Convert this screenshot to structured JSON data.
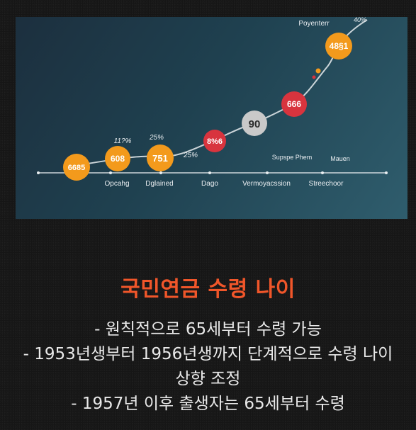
{
  "illustration": {
    "top_labels": [
      "Poyenterr",
      "40%"
    ],
    "milestones": [
      {
        "value": "6685",
        "color": "#f39a1c"
      },
      {
        "value": "608",
        "color": "#f39a1c"
      },
      {
        "value": "751",
        "color": "#f39a1c"
      },
      {
        "value": "8%6",
        "color": "#d8343e"
      },
      {
        "value": "90",
        "color": "#c9c9c9"
      },
      {
        "value": "666",
        "color": "#d8343e"
      },
      {
        "value": "48§1",
        "color": "#f39a1c"
      }
    ],
    "percent_labels": [
      "11?%",
      "25%",
      "25%"
    ],
    "axis_labels": [
      "Opcahg",
      "Dglained",
      "Dago",
      "Vermoyacssion",
      "Streechoor"
    ],
    "upper_labels": [
      "Supspe Phem",
      "Mauen"
    ]
  },
  "content": {
    "title": "국민연금 수령 나이",
    "bullets": [
      "- 원칙적으로 65세부터 수령 가능",
      "- 1953년생부터 1956년생까지 단계적으로 수령 나이 상향 조정",
      "- 1957년 이후 출생자는 65세부터 수령"
    ]
  }
}
